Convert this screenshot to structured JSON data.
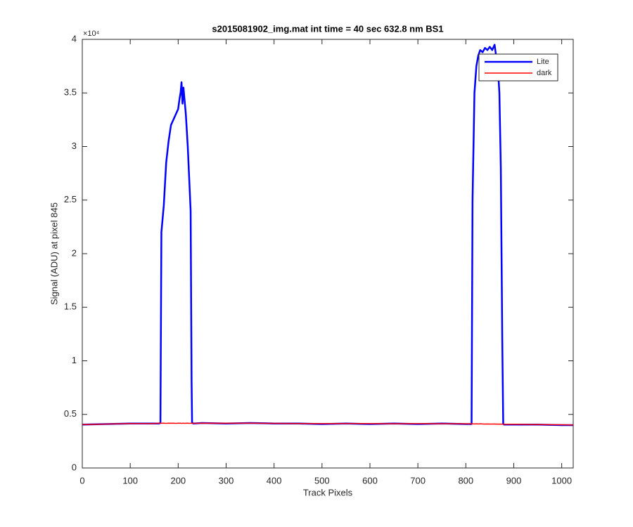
{
  "chart_data": {
    "type": "line",
    "title": "s2015081902_img.mat int time = 40 sec  632.8 nm BS1",
    "xlabel": "Track Pixels",
    "ylabel": "Signal (ADU) at pixel 845",
    "y_exponent_label": "×10⁴",
    "xlim": [
      0,
      1024
    ],
    "ylim": [
      0,
      4
    ],
    "xticks": [
      0,
      100,
      200,
      300,
      400,
      500,
      600,
      700,
      800,
      900,
      1000
    ],
    "yticks": [
      0,
      0.5,
      1,
      1.5,
      2,
      2.5,
      3,
      3.5,
      4
    ],
    "grid": false,
    "legend_position": "top-right",
    "x": [
      0,
      50,
      100,
      150,
      160,
      163,
      165,
      170,
      175,
      180,
      185,
      190,
      195,
      200,
      203,
      205,
      207,
      209,
      211,
      213,
      216,
      220,
      224,
      226,
      228,
      229,
      232,
      250,
      300,
      350,
      400,
      450,
      500,
      550,
      600,
      650,
      700,
      750,
      800,
      810,
      812,
      814,
      818,
      822,
      826,
      830,
      835,
      840,
      845,
      850,
      855,
      860,
      863,
      866,
      870,
      873,
      876,
      878,
      880,
      900,
      950,
      1000,
      1024
    ],
    "series": [
      {
        "name": "Lite",
        "color": "#0000ff",
        "width": 2.5,
        "values": [
          0.405,
          0.41,
          0.415,
          0.415,
          0.415,
          0.42,
          2.2,
          2.45,
          2.85,
          3.05,
          3.2,
          3.25,
          3.3,
          3.35,
          3.45,
          3.5,
          3.6,
          3.4,
          3.55,
          3.45,
          3.3,
          3.0,
          2.6,
          2.4,
          0.8,
          0.42,
          0.415,
          0.42,
          0.415,
          0.42,
          0.415,
          0.415,
          0.41,
          0.415,
          0.41,
          0.415,
          0.41,
          0.415,
          0.41,
          0.41,
          0.41,
          2.5,
          3.5,
          3.75,
          3.85,
          3.9,
          3.88,
          3.92,
          3.9,
          3.93,
          3.9,
          3.95,
          3.85,
          3.8,
          3.5,
          2.8,
          1.2,
          0.41,
          0.405,
          0.405,
          0.405,
          0.4,
          0.4
        ]
      },
      {
        "name": "dark",
        "color": "#ff0000",
        "width": 1.5,
        "values": [
          0.405,
          0.41,
          0.415,
          0.415,
          0.418,
          0.418,
          0.417,
          0.418,
          0.416,
          0.418,
          0.417,
          0.418,
          0.416,
          0.418,
          0.417,
          0.418,
          0.416,
          0.417,
          0.418,
          0.416,
          0.417,
          0.418,
          0.416,
          0.417,
          0.418,
          0.417,
          0.416,
          0.418,
          0.417,
          0.418,
          0.416,
          0.415,
          0.414,
          0.415,
          0.414,
          0.413,
          0.414,
          0.413,
          0.412,
          0.412,
          0.413,
          0.412,
          0.411,
          0.412,
          0.411,
          0.412,
          0.411,
          0.41,
          0.411,
          0.41,
          0.41,
          0.411,
          0.41,
          0.409,
          0.41,
          0.409,
          0.41,
          0.409,
          0.408,
          0.408,
          0.405,
          0.403,
          0.402
        ]
      }
    ]
  }
}
